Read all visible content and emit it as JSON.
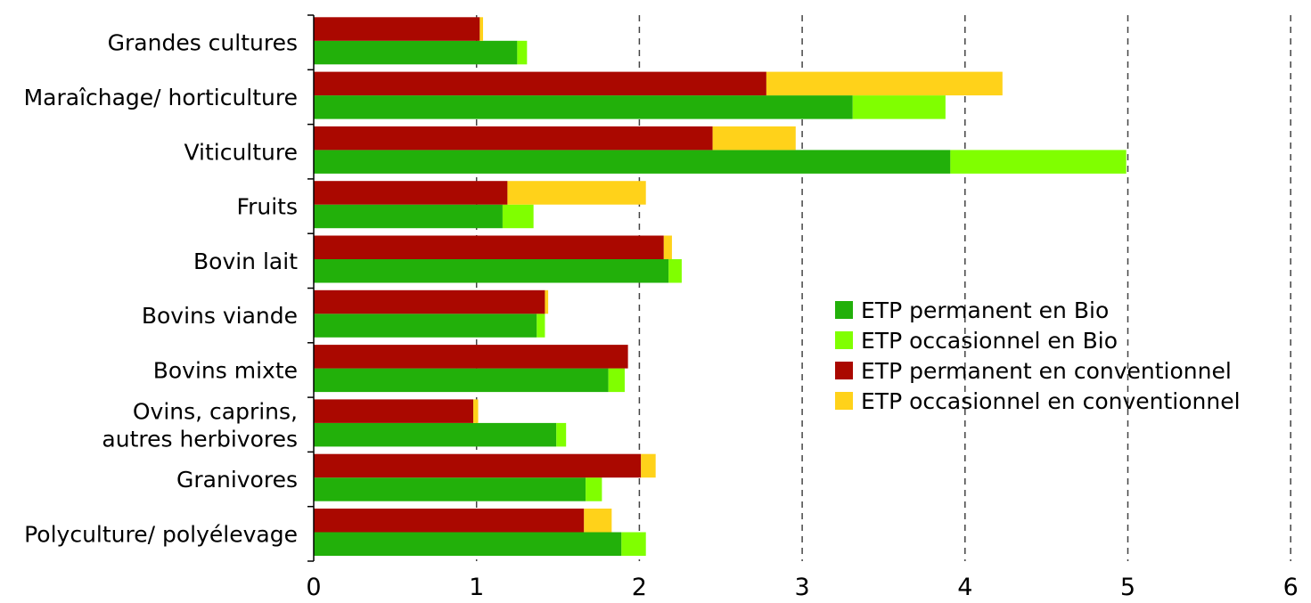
{
  "chart_data": {
    "type": "bar",
    "orientation": "horizontal",
    "stacked": true,
    "title": "",
    "xlabel": "",
    "ylabel": "",
    "xlim": [
      0,
      6
    ],
    "x_ticks": [
      "0",
      "1",
      "2",
      "3",
      "4",
      "5",
      "6"
    ],
    "grid": "vertical dashed",
    "legend_position": "right",
    "categories": [
      [
        "Grandes cultures"
      ],
      [
        "Maraîchage/ horticulture"
      ],
      [
        "Viticulture"
      ],
      [
        "Fruits"
      ],
      [
        "Bovin lait"
      ],
      [
        "Bovins viande"
      ],
      [
        "Bovins mixte"
      ],
      [
        "Ovins, caprins,",
        "autres herbivores"
      ],
      [
        "Granivores"
      ],
      [
        "Polyculture/ polyélevage"
      ]
    ],
    "series": [
      {
        "name": "ETP permanent en Bio",
        "group": "bio",
        "color": "#22b00a",
        "values": [
          1.25,
          3.31,
          3.91,
          1.16,
          2.18,
          1.37,
          1.81,
          1.49,
          1.67,
          1.89
        ]
      },
      {
        "name": "ETP occasionnel en Bio",
        "group": "bio",
        "color": "#80ff00",
        "values": [
          0.06,
          0.57,
          1.08,
          0.19,
          0.08,
          0.05,
          0.1,
          0.06,
          0.1,
          0.15
        ]
      },
      {
        "name": "ETP permanent en conventionnel",
        "group": "conv",
        "color": "#aa0800",
        "values": [
          1.02,
          2.78,
          2.45,
          1.19,
          2.15,
          1.42,
          1.93,
          0.98,
          2.01,
          1.66
        ]
      },
      {
        "name": "ETP occasionnel en conventionnel",
        "group": "conv",
        "color": "#ffd21a",
        "values": [
          0.02,
          1.45,
          0.51,
          0.85,
          0.05,
          0.02,
          0.0,
          0.03,
          0.09,
          0.17
        ]
      }
    ],
    "legend_order": [
      "ETP permanent en Bio",
      "ETP occasionnel en Bio",
      "ETP permanent en conventionnel",
      "ETP occasionnel en conventionnel"
    ]
  }
}
